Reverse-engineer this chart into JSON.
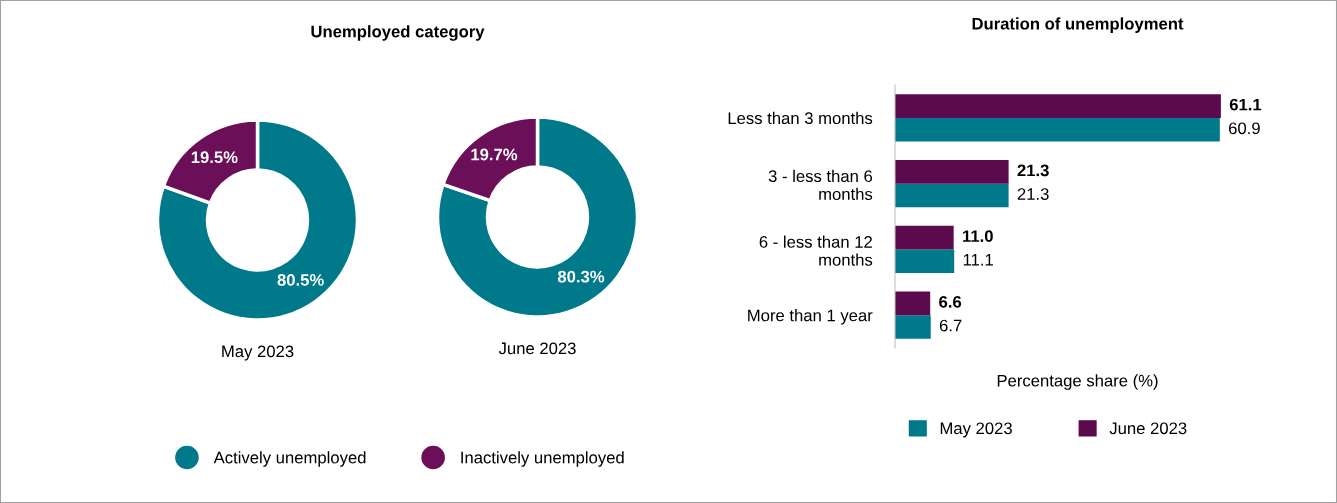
{
  "chart_data": [
    {
      "type": "donut",
      "title": "Unemployed category",
      "xlabel": "May 2023",
      "categories": [
        "Actively unemployed",
        "Inactively unemployed"
      ],
      "values": [
        80.5,
        19.5
      ],
      "colors": [
        "#007a8a",
        "#6b1058"
      ],
      "value_labels": [
        "80.5%",
        "19.5%"
      ],
      "legend": "bottom"
    },
    {
      "type": "donut",
      "xlabel": "June 2023",
      "categories": [
        null,
        null
      ],
      "values": [
        80.3,
        19.7
      ],
      "colors": [
        "#007a8a",
        "#6b1058"
      ],
      "value_labels": [
        "80.3%",
        "19.7%"
      ]
    },
    {
      "type": "bar",
      "orientation": "horizontal",
      "title": "Duration of unemployment",
      "xlabel": "Percentage share (%)",
      "categories": [
        "Less than 3 months",
        "3 - less than 6\nmonths",
        "6 - less than 12\nmonths",
        "More than 1 year"
      ],
      "legend": "bottom",
      "series": [
        {
          "name": "May 2023",
          "color": "#007a8a",
          "values": [
            60.9,
            21.3,
            11.1,
            6.7
          ],
          "value_labels": [
            "60.9",
            "21.3",
            "11.1",
            "6.7"
          ]
        },
        {
          "name": "June 2023",
          "color": "#5c0a4e",
          "values": [
            61.1,
            21.3,
            11.0,
            6.6
          ],
          "value_labels": [
            "61.1",
            "21.3",
            "11.0",
            "6.6"
          ]
        }
      ]
    }
  ]
}
